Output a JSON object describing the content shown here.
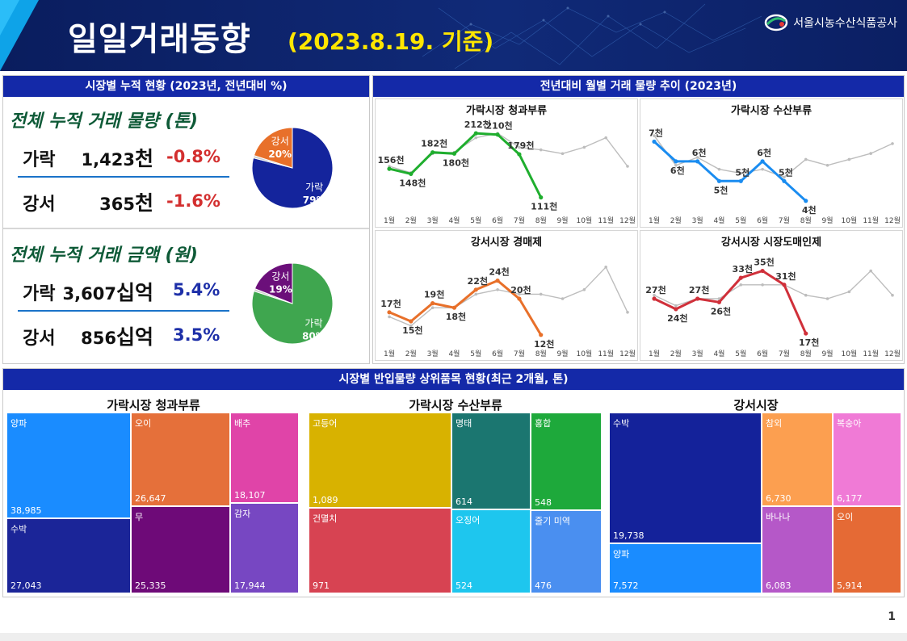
{
  "header": {
    "title": "일일거래동향",
    "subtitle": "(2023.8.19. 기준)",
    "org": "서울시농수산식품공사"
  },
  "cumulative": {
    "heading": "시장별 누적 현황 (2023년, 전년대비 %)",
    "volume": {
      "title": "전체 누적 거래 물량 (톤)",
      "rows": [
        {
          "market": "가락",
          "value": "1,423",
          "unit": "천",
          "change": "-0.8%"
        },
        {
          "market": "강서",
          "value": "365",
          "unit": "천",
          "change": "-1.6%"
        }
      ],
      "pie": [
        {
          "label": "가락",
          "pct": "79%",
          "share": 79,
          "color": "#14249c"
        },
        {
          "label": "강서",
          "pct": "20%",
          "share": 20,
          "color": "#e8702a"
        }
      ]
    },
    "amount": {
      "title": "전체 누적 거래 금액 (원)",
      "rows": [
        {
          "market": "가락",
          "value": "3,607",
          "unit": "십억",
          "change": "5.4%"
        },
        {
          "market": "강서",
          "value": "856",
          "unit": "십억",
          "change": "3.5%"
        }
      ],
      "pie": [
        {
          "label": "가락",
          "pct": "80%",
          "share": 80,
          "color": "#3fa64f"
        },
        {
          "label": "강서",
          "pct": "19%",
          "share": 19,
          "color": "#6b0f7a"
        }
      ]
    }
  },
  "monthly": {
    "heading": "전년대비 월별 거래 물량 추이 (2023년)",
    "months": [
      "1월",
      "2월",
      "3월",
      "4월",
      "5월",
      "6월",
      "7월",
      "8월",
      "9월",
      "10월",
      "11월",
      "12월"
    ],
    "chart_data": [
      {
        "type": "line",
        "title": "가락시장 청과부류",
        "color": "#1fae2e",
        "current": [
          156,
          148,
          182,
          180,
          212,
          210,
          179,
          111
        ],
        "previous": [
          160,
          150,
          180,
          182,
          205,
          212,
          190,
          186,
          180,
          190,
          205,
          160
        ],
        "labels": [
          "156천",
          "148천",
          "182천",
          "180천",
          "212천",
          "210천",
          "179천",
          "111천"
        ],
        "ylim": [
          90,
          230
        ]
      },
      {
        "type": "line",
        "title": "가락시장 수산부류",
        "color": "#1a8cf0",
        "current": [
          7,
          6,
          6,
          5,
          5,
          6,
          5,
          4
        ],
        "previous": [
          7.3,
          5.8,
          6.2,
          5.6,
          5.4,
          5.6,
          5.2,
          6.1,
          5.8,
          6.1,
          6.4,
          6.9
        ],
        "labels": [
          "7천",
          "6천",
          "6천",
          "5천",
          "5천",
          "6천",
          "5천",
          "4천"
        ],
        "ylim": [
          3.5,
          8
        ]
      },
      {
        "type": "line",
        "title": "강서시장 경매제",
        "color": "#e8702a",
        "current": [
          17,
          15,
          19,
          18,
          22,
          24,
          20,
          12
        ],
        "previous": [
          16,
          14,
          18,
          18,
          21,
          22,
          21,
          21,
          20,
          22,
          27,
          17
        ],
        "labels": [
          "17천",
          "15천",
          "19천",
          "18천",
          "22천",
          "24천",
          "20천",
          "12천"
        ],
        "ylim": [
          10,
          30
        ]
      },
      {
        "type": "line",
        "title": "강서시장 시장도매인제",
        "color": "#d0303a",
        "current": [
          27,
          24,
          27,
          26,
          33,
          35,
          31,
          17
        ],
        "previous": [
          28,
          25,
          27,
          27,
          31,
          31,
          31,
          28,
          27,
          29,
          35,
          28
        ],
        "labels": [
          "27천",
          "24천",
          "27천",
          "26천",
          "33천",
          "35천",
          "31천",
          "17천"
        ],
        "ylim": [
          14,
          40
        ]
      }
    ]
  },
  "treemap": {
    "heading": "시장별 반입물량 상위품목 현황(최근 2개월, 톤)",
    "groups": [
      {
        "title": "가락시장 청과부류",
        "items": [
          {
            "name": "양파",
            "value": "38,985",
            "color": "#1a8cff"
          },
          {
            "name": "수박",
            "value": "27,043",
            "color": "#1b2598"
          },
          {
            "name": "오이",
            "value": "26,647",
            "color": "#e5703a"
          },
          {
            "name": "무",
            "value": "25,335",
            "color": "#6e0a78"
          },
          {
            "name": "배추",
            "value": "18,107",
            "color": "#e044a8"
          },
          {
            "name": "감자",
            "value": "17,944",
            "color": "#7747c2"
          }
        ]
      },
      {
        "title": "가락시장 수산부류",
        "items": [
          {
            "name": "고등어",
            "value": "1,089",
            "color": "#d8b200"
          },
          {
            "name": "건멸치",
            "value": "971",
            "color": "#d74352"
          },
          {
            "name": "명태",
            "value": "614",
            "color": "#1b7670"
          },
          {
            "name": "오징어",
            "value": "524",
            "color": "#1ec6ee"
          },
          {
            "name": "홍합",
            "value": "548",
            "color": "#1ea93b"
          },
          {
            "name": "줄기 미역",
            "value": "476",
            "color": "#4a8ff0"
          }
        ]
      },
      {
        "title": "강서시장",
        "items": [
          {
            "name": "수박",
            "value": "19,738",
            "color": "#14229a"
          },
          {
            "name": "양파",
            "value": "7,572",
            "color": "#1a8cff"
          },
          {
            "name": "참외",
            "value": "6,730",
            "color": "#fc9f50"
          },
          {
            "name": "바나나",
            "value": "6,083",
            "color": "#b558c8"
          },
          {
            "name": "복숭아",
            "value": "6,177",
            "color": "#f07ad6"
          },
          {
            "name": "오이",
            "value": "5,914",
            "color": "#e56a35"
          }
        ]
      }
    ]
  },
  "page_number": "1"
}
